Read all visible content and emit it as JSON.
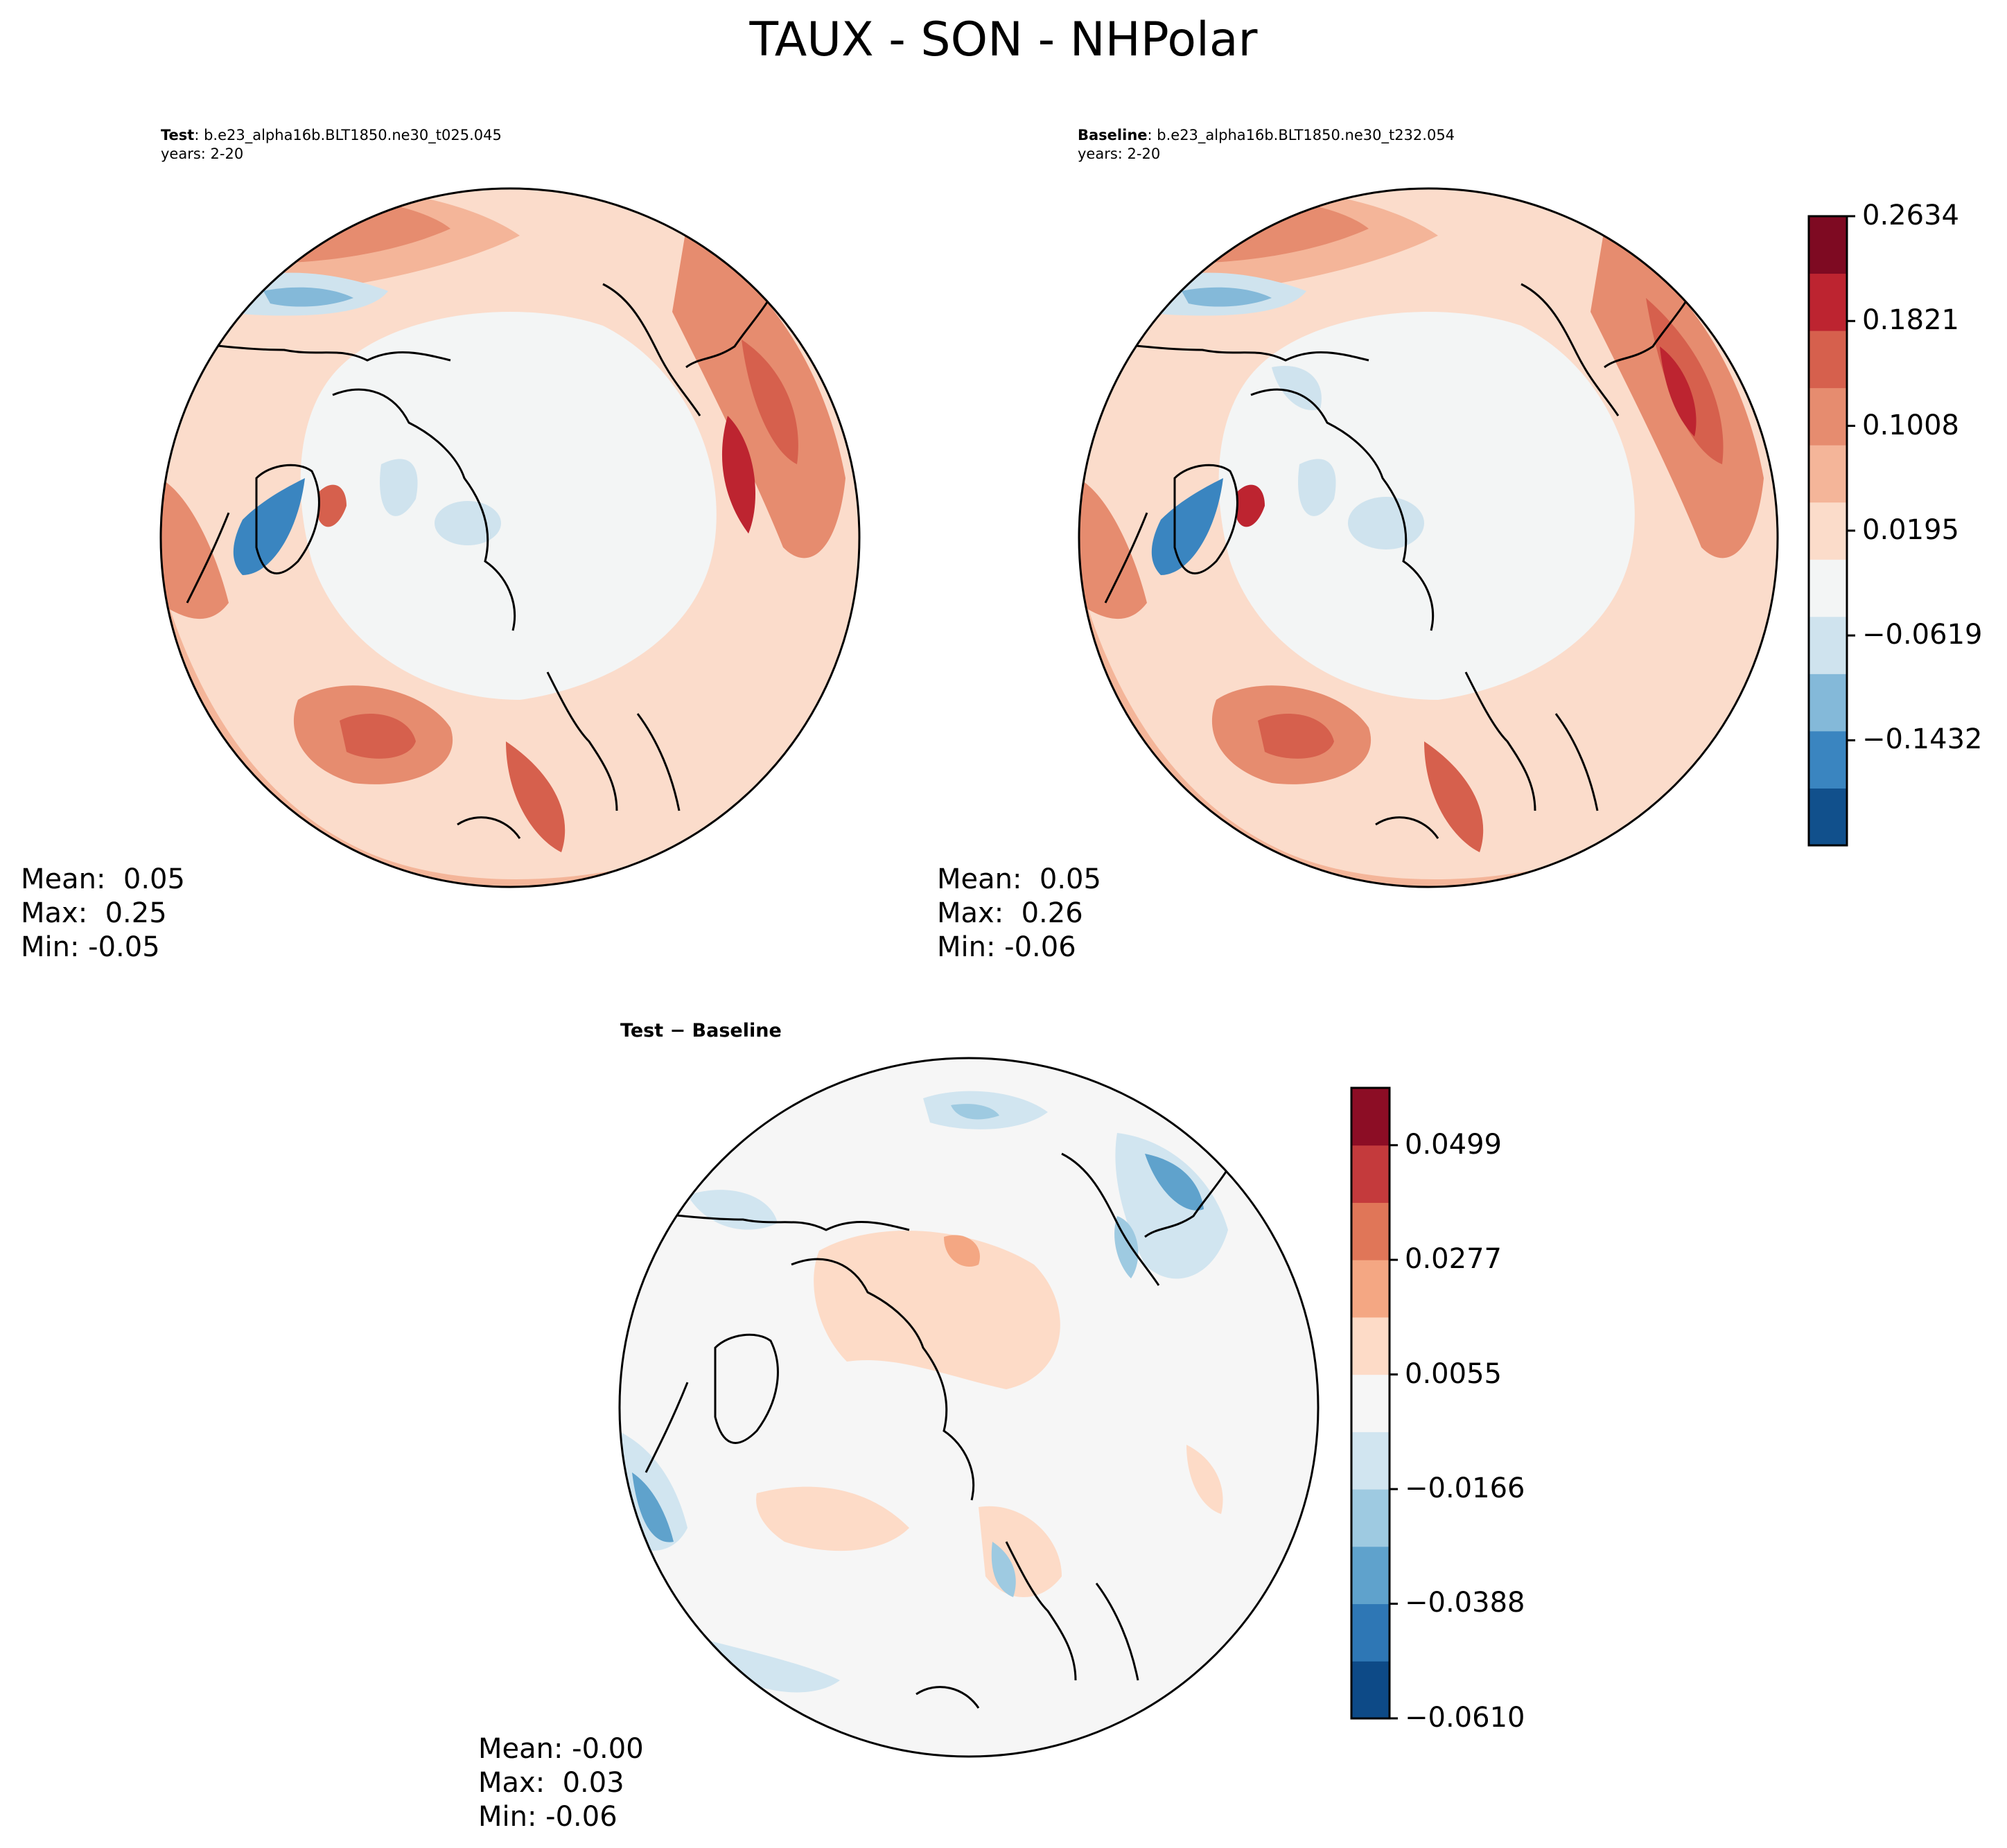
{
  "title": "TAUX - SON - NHPolar",
  "panels": {
    "test": {
      "label": "Test",
      "case": ": b.e23_alpha16b.BLT1850.ne30_t025.045",
      "years": "years: 2-20",
      "stats": {
        "mean": "Mean:  0.05",
        "max": "Max:  0.25",
        "min": "Min: -0.05"
      }
    },
    "baseline": {
      "label": "Baseline",
      "case": ": b.e23_alpha16b.BLT1850.ne30_t232.054",
      "years": "years: 2-20",
      "stats": {
        "mean": "Mean:  0.05",
        "max": "Max:  0.26",
        "min": "Min: -0.06"
      }
    },
    "diff": {
      "label": "Test − Baseline",
      "stats": {
        "mean": "Mean: -0.00",
        "max": "Max:  0.03",
        "min": "Min: -0.06"
      }
    }
  },
  "colorbars": {
    "main": {
      "ticks": [
        "0.2634",
        "0.1821",
        "0.1008",
        "0.0195",
        "−0.0619",
        "−0.1432"
      ]
    },
    "diff": {
      "ticks": [
        "0.0499",
        "0.0277",
        "0.0055",
        "−0.0166",
        "−0.0388",
        "−0.0610"
      ]
    }
  },
  "palette": [
    "#0d4a87",
    "#2e77b5",
    "#5fa2cc",
    "#9ecae1",
    "#d1e5f0",
    "#f6f6f6",
    "#fddbc7",
    "#f4a783",
    "#e07658",
    "#c43a3c",
    "#8c0d25"
  ],
  "palette_main": [
    "#11508c",
    "#3a85c0",
    "#84b9d9",
    "#cfe3ee",
    "#f3f5f5",
    "#fbdcca",
    "#f4b599",
    "#e68c6f",
    "#d6604d",
    "#bd2430",
    "#7e0a22"
  ],
  "colors": {
    "ocean_test": "#fbdccb",
    "ocean_diff": "#f6f6f6",
    "land_test": "#f3f5f5"
  }
}
